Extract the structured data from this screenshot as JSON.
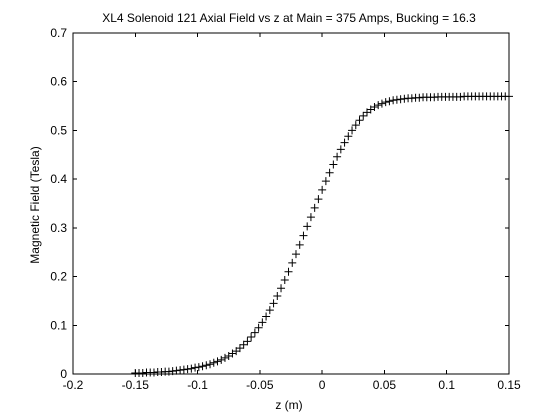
{
  "chart_data": {
    "type": "scatter",
    "title": "XL4 Solenoid 121 Axial Field vs z at Main = 375 Amps, Bucking = 16.3",
    "xlabel": "z (m)",
    "ylabel": "Magnetic Field (Tesla)",
    "xlim": [
      -0.2,
      0.15
    ],
    "ylim": [
      0,
      0.7
    ],
    "xticks": [
      -0.2,
      -0.15,
      -0.1,
      -0.05,
      0,
      0.05,
      0.1,
      0.15
    ],
    "xtick_labels": [
      "-0.2",
      "-0.15",
      "-0.1",
      "-0.05",
      "0",
      "0.05",
      "0.1",
      "0.15"
    ],
    "yticks": [
      0,
      0.1,
      0.2,
      0.3,
      0.4,
      0.5,
      0.6,
      0.7
    ],
    "ytick_labels": [
      "0",
      "0.1",
      "0.2",
      "0.3",
      "0.4",
      "0.5",
      "0.6",
      "0.7"
    ],
    "grid": false,
    "marker": "+",
    "color": "#000000",
    "series": [
      {
        "x": [
          -0.15,
          -0.147,
          -0.144,
          -0.141,
          -0.138,
          -0.135,
          -0.132,
          -0.129,
          -0.126,
          -0.123,
          -0.12,
          -0.117,
          -0.114,
          -0.111,
          -0.108,
          -0.105,
          -0.102,
          -0.099,
          -0.096,
          -0.093,
          -0.09,
          -0.087,
          -0.084,
          -0.081,
          -0.078,
          -0.075,
          -0.072,
          -0.069,
          -0.066,
          -0.063,
          -0.06,
          -0.057,
          -0.054,
          -0.051,
          -0.048,
          -0.045,
          -0.042,
          -0.039,
          -0.036,
          -0.033,
          -0.03,
          -0.027,
          -0.024,
          -0.021,
          -0.018,
          -0.015,
          -0.012,
          -0.009,
          -0.006,
          -0.003,
          0.0,
          0.003,
          0.006,
          0.009,
          0.012,
          0.015,
          0.018,
          0.021,
          0.024,
          0.027,
          0.03,
          0.033,
          0.036,
          0.039,
          0.042,
          0.045,
          0.048,
          0.051,
          0.054,
          0.057,
          0.06,
          0.063,
          0.066,
          0.069,
          0.072,
          0.075,
          0.078,
          0.081,
          0.084,
          0.087,
          0.09,
          0.093,
          0.096,
          0.099,
          0.102,
          0.105,
          0.108,
          0.111,
          0.114,
          0.117,
          0.12,
          0.123,
          0.126,
          0.129,
          0.132,
          0.135,
          0.138,
          0.141,
          0.144,
          0.147,
          0.15
        ],
        "y": [
          0.002,
          0.002,
          0.002,
          0.003,
          0.003,
          0.003,
          0.004,
          0.004,
          0.005,
          0.005,
          0.006,
          0.007,
          0.008,
          0.009,
          0.01,
          0.011,
          0.013,
          0.014,
          0.016,
          0.018,
          0.02,
          0.023,
          0.026,
          0.029,
          0.033,
          0.037,
          0.042,
          0.047,
          0.053,
          0.06,
          0.067,
          0.076,
          0.085,
          0.095,
          0.106,
          0.118,
          0.131,
          0.145,
          0.16,
          0.176,
          0.193,
          0.21,
          0.228,
          0.246,
          0.265,
          0.284,
          0.303,
          0.322,
          0.341,
          0.359,
          0.378,
          0.396,
          0.413,
          0.43,
          0.446,
          0.461,
          0.475,
          0.488,
          0.5,
          0.511,
          0.521,
          0.53,
          0.537,
          0.543,
          0.548,
          0.552,
          0.555,
          0.558,
          0.56,
          0.562,
          0.563,
          0.564,
          0.565,
          0.566,
          0.566,
          0.567,
          0.567,
          0.568,
          0.568,
          0.568,
          0.568,
          0.569,
          0.569,
          0.569,
          0.569,
          0.569,
          0.569,
          0.569,
          0.57,
          0.57,
          0.57,
          0.57,
          0.57,
          0.57,
          0.57,
          0.57,
          0.57,
          0.57,
          0.57,
          0.57,
          0.57
        ]
      }
    ]
  }
}
